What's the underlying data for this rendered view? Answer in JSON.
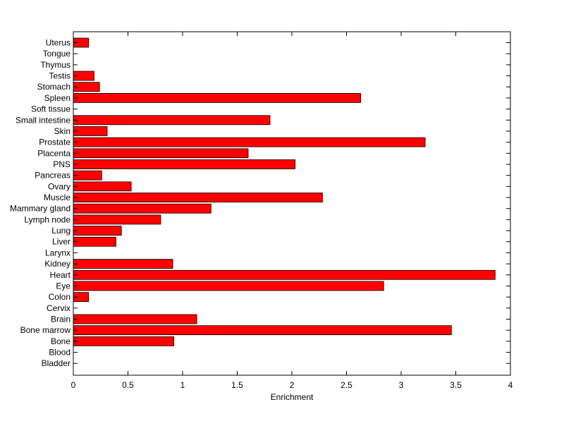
{
  "chart_data": {
    "type": "bar",
    "orientation": "horizontal",
    "xlabel": "Enrichment",
    "ylabel": "",
    "title": "",
    "xlim": [
      0,
      4
    ],
    "xticks": [
      "0",
      "0.5",
      "1",
      "1.5",
      "2",
      "2.5",
      "3",
      "3.5",
      "4"
    ],
    "grid": false,
    "legend": "none",
    "bar_color": "#ff0000",
    "bar_edge_color": "#000000",
    "categories": [
      "Uterus",
      "Tongue",
      "Thymus",
      "Testis",
      "Stomach",
      "Spleen",
      "Soft tissue",
      "Small intestine",
      "Skin",
      "Prostate",
      "Placenta",
      "PNS",
      "Pancreas",
      "Ovary",
      "Muscle",
      "Mammary gland",
      "Lymph node",
      "Lung",
      "Liver",
      "Larynx",
      "Kidney",
      "Heart",
      "Eye",
      "Colon",
      "Cervix",
      "Brain",
      "Bone marrow",
      "Bone",
      "Blood",
      "Bladder"
    ],
    "values": [
      0.14,
      0,
      0,
      0.19,
      0.24,
      2.63,
      0,
      1.8,
      0.31,
      3.22,
      1.6,
      2.03,
      0.26,
      0.53,
      2.28,
      1.26,
      0.8,
      0.44,
      0.39,
      0,
      0.91,
      3.86,
      2.84,
      0.14,
      0,
      1.13,
      3.46,
      0.92,
      0,
      0
    ]
  }
}
